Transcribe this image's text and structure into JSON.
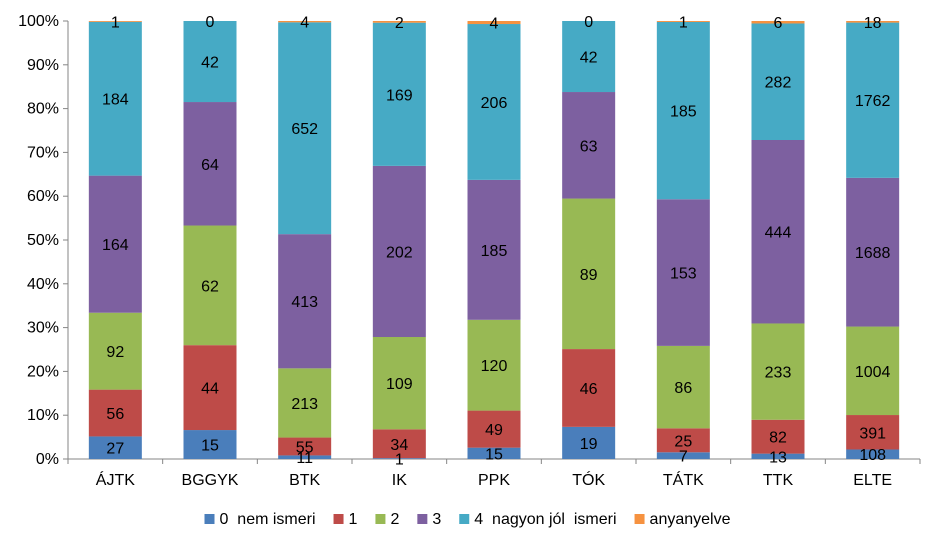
{
  "chart_data": {
    "type": "bar",
    "stacking": "percent",
    "categories": [
      "ÁJTK",
      "BGGYK",
      "BTK",
      "IK",
      "PPK",
      "TÓK",
      "TÁTK",
      "TTK",
      "ELTE"
    ],
    "series": [
      {
        "name": "0  nem ismeri",
        "color": "#4a7ebb",
        "values": [
          27,
          15,
          11,
          1,
          15,
          19,
          7,
          13,
          108
        ]
      },
      {
        "name": "1",
        "color": "#be4b48",
        "values": [
          56,
          44,
          55,
          34,
          49,
          46,
          25,
          82,
          391
        ]
      },
      {
        "name": "2",
        "color": "#98b954",
        "values": [
          92,
          62,
          213,
          109,
          120,
          89,
          86,
          233,
          1004
        ]
      },
      {
        "name": "3",
        "color": "#7d60a0",
        "values": [
          164,
          64,
          413,
          202,
          185,
          63,
          153,
          444,
          1688
        ]
      },
      {
        "name": "4  nagyon jól  ismeri",
        "color": "#46aac5",
        "values": [
          184,
          42,
          652,
          169,
          206,
          42,
          185,
          282,
          1762
        ]
      },
      {
        "name": "anyanyelve",
        "color": "#f69240",
        "values": [
          1,
          0,
          4,
          2,
          4,
          0,
          1,
          6,
          18
        ]
      }
    ],
    "yticks": [
      "0%",
      "10%",
      "20%",
      "30%",
      "40%",
      "50%",
      "60%",
      "70%",
      "80%",
      "90%",
      "100%"
    ],
    "ylim": [
      0,
      100
    ],
    "legend_position": "bottom",
    "grid": false
  }
}
